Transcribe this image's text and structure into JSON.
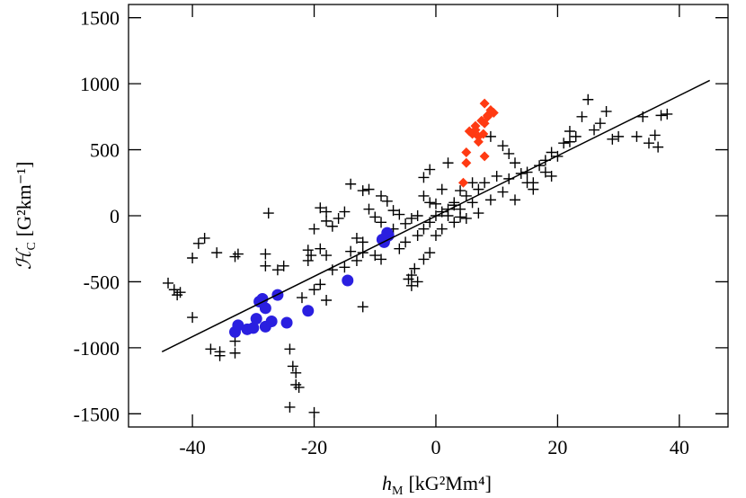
{
  "chart_data": {
    "type": "scatter",
    "xlabel": {
      "symbol": "h",
      "subscript": "M",
      "units": "[kG²Mm⁴]"
    },
    "ylabel": {
      "symbol": "ℋ",
      "subscript": "C",
      "units": "[G²km⁻¹]"
    },
    "xlim": [
      -50.5,
      48
    ],
    "ylim": [
      -1600,
      1600
    ],
    "xticks": [
      -40,
      -20,
      0,
      20,
      40
    ],
    "yticks": [
      -1500,
      -1000,
      -500,
      0,
      500,
      1000,
      1500
    ],
    "series": [
      {
        "type": "scatter",
        "marker": "cross",
        "color": "#000000",
        "x": [
          -44,
          -43,
          -42.5,
          -42,
          -40,
          -40,
          -39,
          -38,
          -36,
          -37,
          -35.5,
          -35.5,
          -33,
          -33,
          -33,
          -32.5,
          -28,
          -28,
          -27.5,
          -26,
          -25,
          -24,
          -23.5,
          -23,
          -23,
          -24,
          -22.5,
          -20,
          -20.5,
          -21,
          -22,
          -20,
          -19,
          -21,
          -18,
          -19,
          -18,
          -17,
          -15,
          -13,
          -12,
          -10,
          -12,
          -14,
          -18,
          -17,
          -11,
          -13,
          -14,
          -12,
          -9,
          -8,
          -6,
          -5,
          -4,
          -4.5,
          -4,
          -3.5,
          -3,
          -2,
          -1,
          0,
          1,
          2,
          3,
          1,
          -1,
          0,
          2,
          3,
          4,
          5,
          6,
          7,
          8,
          10,
          12,
          14,
          15,
          16,
          18,
          20,
          21,
          22,
          24,
          25,
          27,
          28,
          29,
          30,
          33,
          35,
          36,
          37,
          38,
          34,
          36.5,
          19,
          17,
          15,
          13,
          11,
          9,
          7,
          5,
          3,
          1,
          -1,
          -2,
          -3,
          -5,
          -6,
          -7,
          -9,
          -10,
          -11,
          -15,
          -16,
          -18,
          -19,
          -20,
          -9,
          -12,
          -2,
          0,
          4,
          6,
          4,
          -1,
          -3,
          -4,
          -7,
          2,
          -2,
          12,
          11,
          9,
          16,
          23,
          13,
          18,
          19,
          22,
          26
        ],
        "values": [
          -510,
          -560,
          -600,
          -580,
          -320,
          -770,
          -210,
          -170,
          -280,
          -1010,
          -1060,
          -1030,
          -1040,
          -950,
          -310,
          -290,
          -380,
          -290,
          20,
          -410,
          -380,
          -1010,
          -1140,
          -1190,
          -1280,
          -1450,
          -1300,
          -1490,
          -300,
          -340,
          -620,
          -560,
          -520,
          -260,
          -300,
          -250,
          -640,
          -410,
          -390,
          -340,
          -690,
          -300,
          -200,
          -270,
          -40,
          -80,
          200,
          -170,
          240,
          190,
          150,
          110,
          10,
          -60,
          -530,
          -480,
          -450,
          -400,
          -500,
          -330,
          -280,
          -150,
          -100,
          50,
          100,
          200,
          100,
          0,
          0,
          -50,
          50,
          150,
          100,
          200,
          250,
          300,
          280,
          320,
          250,
          200,
          330,
          450,
          550,
          640,
          750,
          880,
          700,
          790,
          580,
          600,
          600,
          550,
          610,
          760,
          770,
          750,
          520,
          300,
          380,
          330,
          400,
          180,
          120,
          20,
          -20,
          80,
          30,
          -50,
          -100,
          -150,
          -200,
          -250,
          -100,
          -50,
          -10,
          50,
          30,
          -20,
          30,
          60,
          -100,
          -330,
          -280,
          150,
          90,
          190,
          250,
          -10,
          350,
          0,
          -20,
          40,
          400,
          290,
          470,
          530,
          600,
          250,
          600,
          120,
          420,
          480,
          560,
          650
        ]
      },
      {
        "type": "scatter",
        "marker": "circle",
        "color": "#2a1fe0",
        "x": [
          -33,
          -32.5,
          -31,
          -30,
          -29.5,
          -29,
          -28.5,
          -28,
          -28,
          -27,
          -26,
          -24.5,
          -21,
          -14.5,
          -8.5,
          -8.3,
          -8,
          -8.8,
          -7.8
        ],
        "values": [
          -880,
          -830,
          -860,
          -850,
          -780,
          -650,
          -630,
          -700,
          -840,
          -800,
          -600,
          -810,
          -720,
          -490,
          -200,
          -170,
          -130,
          -180,
          -150
        ]
      },
      {
        "type": "scatter",
        "marker": "diamond",
        "color": "#ff3a12",
        "x": [
          4.5,
          5,
          5,
          6,
          6.5,
          7,
          7.5,
          8,
          8.5,
          8,
          9,
          9.5,
          7,
          6.5,
          8,
          5.5,
          8.5,
          7.8
        ],
        "values": [
          250,
          400,
          480,
          620,
          650,
          560,
          720,
          850,
          760,
          700,
          800,
          780,
          600,
          680,
          450,
          640,
          750,
          620
        ]
      },
      {
        "type": "line",
        "color": "#000000",
        "x": [
          -45,
          45
        ],
        "values": [
          -1030,
          1025
        ]
      }
    ]
  }
}
